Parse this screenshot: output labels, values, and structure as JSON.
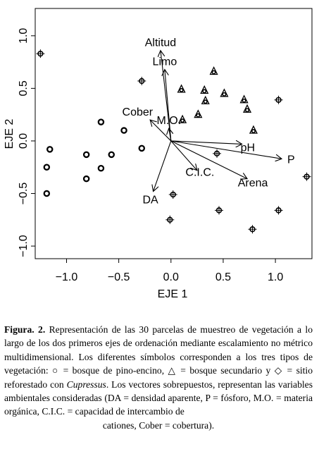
{
  "chart_data": {
    "type": "scatter",
    "xlabel": "EJE 1",
    "ylabel": "EJE 2",
    "xlim": [
      -1.3,
      1.35
    ],
    "ylim": [
      -1.12,
      1.26
    ],
    "xticks": [
      -1.0,
      -0.5,
      0.0,
      0.5,
      1.0
    ],
    "xtick_labels": [
      "−1.0",
      "−0.5",
      "0.0",
      "0.5",
      "1.0"
    ],
    "yticks": [
      -1.0,
      -0.5,
      0.0,
      0.5,
      1.0
    ],
    "ytick_labels": [
      "−1.0",
      "−0.5",
      "0.0",
      "0.5",
      "1.0"
    ],
    "grid": false,
    "series": [
      {
        "marker": "circle",
        "points": [
          [
            -1.16,
            -0.08
          ],
          [
            -1.19,
            -0.25
          ],
          [
            -1.19,
            -0.5
          ],
          [
            -0.81,
            -0.13
          ],
          [
            -0.81,
            -0.36
          ],
          [
            -0.67,
            -0.26
          ],
          [
            -0.57,
            -0.13
          ],
          [
            -0.67,
            0.18
          ],
          [
            -0.45,
            0.1
          ],
          [
            -0.28,
            -0.07
          ]
        ]
      },
      {
        "marker": "triangle",
        "points": [
          [
            0.1,
            0.49
          ],
          [
            0.32,
            0.48
          ],
          [
            0.33,
            0.38
          ],
          [
            0.41,
            0.66
          ],
          [
            0.51,
            0.45
          ],
          [
            0.7,
            0.39
          ],
          [
            0.73,
            0.3
          ],
          [
            0.79,
            0.1
          ],
          [
            0.11,
            0.2
          ],
          [
            0.26,
            0.25
          ]
        ]
      },
      {
        "marker": "cross-circle",
        "points": [
          [
            -1.25,
            0.83
          ],
          [
            -0.28,
            0.57
          ],
          [
            1.03,
            0.39
          ],
          [
            1.3,
            -0.34
          ],
          [
            0.44,
            -0.12
          ],
          [
            0.02,
            -0.51
          ],
          [
            -0.01,
            -0.75
          ],
          [
            0.46,
            -0.66
          ],
          [
            0.78,
            -0.84
          ],
          [
            1.03,
            -0.66
          ]
        ]
      }
    ],
    "vectors": [
      {
        "label": "Altitud",
        "x": -0.1,
        "y": 0.86
      },
      {
        "label": "Limo",
        "x": -0.06,
        "y": 0.68
      },
      {
        "label": "Cober",
        "x": -0.2,
        "y": 0.2
      },
      {
        "label": "M.O.",
        "x": -0.02,
        "y": 0.12
      },
      {
        "label": "pH",
        "x": 0.68,
        "y": -0.03
      },
      {
        "label": "P",
        "x": 1.06,
        "y": -0.17
      },
      {
        "label": "C.I.C.",
        "x": 0.25,
        "y": -0.28
      },
      {
        "label": "Arena",
        "x": 0.73,
        "y": -0.36
      },
      {
        "label": "DA",
        "x": -0.17,
        "y": -0.48
      }
    ],
    "vector_origin": [
      0.0,
      0.0
    ]
  },
  "caption": {
    "figure_label": "Figura. 2.",
    "text_1": " Representación de las 30 parcelas de muestreo de vegetación a lo largo de los dos primeros ejes de ordenación mediante escalamiento no métrico multidimensional. Los diferentes símbolos corresponden a los tres tipos de vegetación: ○ = bosque de pino-encino, △ = bosque secundario y ◇ = sitio reforestado con ",
    "species": "Cupressus",
    "text_2": ". Los vectores sobrepuestos, representan las variables ambientales consideradas (DA = densidad aparente, P = fósforo, M.O. = materia orgánica, C.I.C. = capacidad de intercambio de",
    "last_line": "cationes, Cober = cobertura)."
  }
}
